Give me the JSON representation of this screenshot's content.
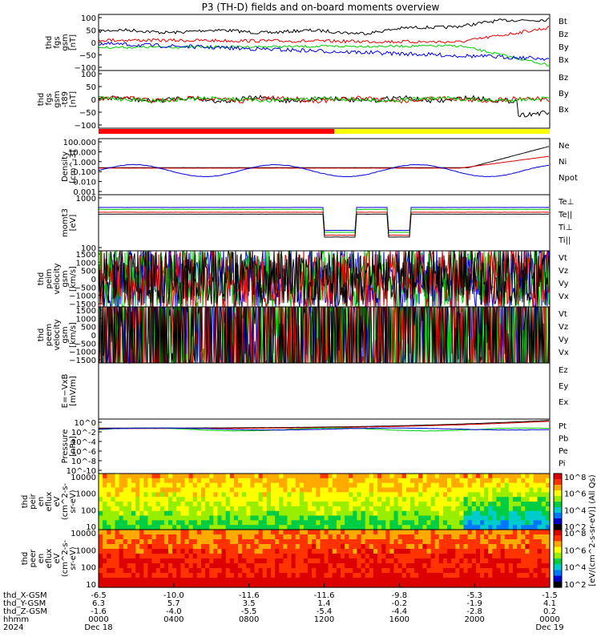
{
  "title": "P3 (TH-D) fields and on-board moments overview",
  "chart_data": {
    "type": "line",
    "panels": [
      {
        "id": "fgs",
        "ylabel": [
          "thd",
          "fgs",
          "gsm",
          "[nT]"
        ],
        "yticks": [
          "100",
          "50",
          "0",
          "−50",
          "−100"
        ],
        "legend": [
          {
            "label": "Bt",
            "color": "#000000"
          },
          {
            "label": "Bz",
            "color": "#dd0000"
          },
          {
            "label": "By",
            "color": "#00cc00"
          },
          {
            "label": "Bx",
            "color": "#0000dd"
          }
        ]
      },
      {
        "id": "fgs-t89",
        "ylabel": [
          "thd",
          "fgs",
          "gsm",
          "-t89",
          "[nT]"
        ],
        "yticks": [
          "100",
          "50",
          "0",
          "−50",
          "−100"
        ],
        "legend": [
          {
            "label": "Bz",
            "color": "#dd0000"
          },
          {
            "label": "By",
            "color": "#00cc00"
          },
          {
            "label": "Bx",
            "color": "#000000"
          }
        ]
      },
      {
        "id": "density",
        "ylabel": [
          "Density",
          "[cm^-3]"
        ],
        "yticks": [
          "100.000",
          "10.000",
          "1.000",
          "0.100",
          "0.010",
          "0.001"
        ],
        "legend": [
          {
            "label": "Ne",
            "color": "#dd0000"
          },
          {
            "label": "Ni",
            "color": "#000000"
          },
          {
            "label": "Npot",
            "color": "#0000dd"
          }
        ]
      },
      {
        "id": "temperature",
        "ylabel": [
          "momt3",
          "[eV]"
        ],
        "yticks": [
          "1000",
          "100"
        ],
        "legend": [
          {
            "label": "Te⊥",
            "color": "#dd0000"
          },
          {
            "label": "Te||",
            "color": "#000000"
          },
          {
            "label": "Ti⊥",
            "color": "#0000dd"
          },
          {
            "label": "Ti||",
            "color": "#00cc00"
          }
        ]
      },
      {
        "id": "peim-velocity",
        "ylabel": [
          "thd",
          "peim",
          "velocity",
          "gsm",
          "[km/s]"
        ],
        "yticks": [
          "1500",
          "1000",
          "500",
          "0",
          "−500",
          "−1000",
          "−1500"
        ],
        "legend": [
          {
            "label": "Vt",
            "color": "#000000"
          },
          {
            "label": "Vz",
            "color": "#dd0000"
          },
          {
            "label": "Vy",
            "color": "#00cc00"
          },
          {
            "label": "Vx",
            "color": "#0000dd"
          }
        ]
      },
      {
        "id": "peem-velocity",
        "ylabel": [
          "thd",
          "peem",
          "velocity",
          "gsm",
          "[km/s]"
        ],
        "yticks": [
          "1500",
          "1000",
          "500",
          "0",
          "−500",
          "−1000",
          "−1500"
        ],
        "legend": [
          {
            "label": "Vt",
            "color": "#000000"
          },
          {
            "label": "Vz",
            "color": "#dd0000"
          },
          {
            "label": "Vy",
            "color": "#00cc00"
          },
          {
            "label": "Vx",
            "color": "#0000dd"
          }
        ]
      },
      {
        "id": "efield",
        "ylabel": [
          "E=−VxB",
          "[mV/m]"
        ],
        "yticks": [],
        "legend": [
          {
            "label": "Ez",
            "color": "#dd0000"
          },
          {
            "label": "Ey",
            "color": "#00cc00"
          },
          {
            "label": "Ex",
            "color": "#0000dd"
          }
        ]
      },
      {
        "id": "pressure",
        "ylabel": [
          "Pressure",
          "[nPa]"
        ],
        "yticks": [
          "10^0",
          "10^-2",
          "10^-4",
          "10^-6",
          "10^-8",
          "10^-10"
        ],
        "legend": [
          {
            "label": "Pt",
            "color": "#000000"
          },
          {
            "label": "Pb",
            "color": "#dd0000"
          },
          {
            "label": "Pe",
            "color": "#00cc00"
          },
          {
            "label": "Pi",
            "color": "#0000dd"
          }
        ]
      },
      {
        "id": "peir-eflux",
        "ylabel": [
          "thd",
          "peir",
          "en",
          "eflux",
          "eV",
          "(cm^2-s-",
          "sr-eV)"
        ],
        "yticks": [
          "10000",
          "1000",
          "100",
          "10"
        ],
        "legend": []
      },
      {
        "id": "peer-eflux",
        "ylabel": [
          "thd",
          "peer",
          "en",
          "eflux",
          "eV",
          "(cm^2-s-",
          "sr-eV)"
        ],
        "yticks": [
          "10000",
          "1000",
          "100",
          "10"
        ],
        "legend": []
      }
    ],
    "colorbar": {
      "label": "[eV/(cm^2-s-sr-eV)] (All Qs)",
      "ticks_top": [
        "10^8",
        "10^6",
        "10^4",
        "10^2"
      ],
      "ticks_bottom": [
        "10^8",
        "10^6",
        "10^4",
        "10^2"
      ]
    },
    "x_axis": {
      "ticks": [
        {
          "x": "-6.5",
          "y": "6.3",
          "z": "-1.6",
          "hhmm": "0000"
        },
        {
          "x": "-10.0",
          "y": "5.7",
          "z": "-4.0",
          "hhmm": "0400"
        },
        {
          "x": "-11.6",
          "y": "3.5",
          "z": "-5.5",
          "hhmm": "0800"
        },
        {
          "x": "-11.6",
          "y": "1.4",
          "z": "-5.4",
          "hhmm": "1200"
        },
        {
          "x": "-9.8",
          "y": "-0.2",
          "z": "-4.4",
          "hhmm": "1600"
        },
        {
          "x": "-5.3",
          "y": "-1.9",
          "z": "-2.8",
          "hhmm": "2000"
        },
        {
          "x": "-1.5",
          "y": "4.1",
          "z": "0.2",
          "hhmm": "0000"
        }
      ],
      "row_labels": [
        "thd_X-GSM",
        "thd_Y-GSM",
        "thd_Z-GSM",
        "hhmm",
        "2024"
      ],
      "start_date": "Dec 18",
      "end_date": "Dec 19"
    },
    "mode_bar": {
      "colors": [
        "#ff0000",
        "#ffff00"
      ]
    }
  }
}
